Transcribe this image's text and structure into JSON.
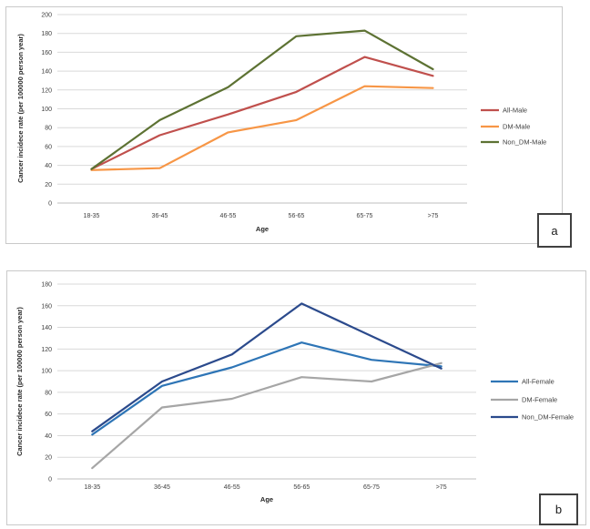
{
  "page": {
    "background": "#ffffff"
  },
  "theme": {
    "gridline_color": "#d9d9d9",
    "axis_line_color": "#bfbfbf",
    "tick_label_color": "#404040",
    "legend_text_color": "#404040",
    "figure_border_color": "#c9c9c9",
    "panel_box_border_color": "#404040"
  },
  "chart_data": [
    {
      "type": "line",
      "panel_label": "a",
      "title": "",
      "xlabel": "Age",
      "ylabel": "Cancer incidece rate (per 100000 person year)",
      "ylim": [
        0,
        200
      ],
      "ytick_step": 20,
      "grid": true,
      "legend_position": "right",
      "categories": [
        "18-35",
        "36-45",
        "46-55",
        "56-65",
        "65-75",
        ">75"
      ],
      "series": [
        {
          "name": "All-Male",
          "color": "#C0504D",
          "values": [
            36,
            72,
            94,
            118,
            155,
            135
          ]
        },
        {
          "name": "DM-Male",
          "color": "#F79646",
          "values": [
            35,
            37,
            75,
            88,
            124,
            122
          ]
        },
        {
          "name": "Non_DM-Male",
          "color": "#5D7233",
          "values": [
            36,
            88,
            123,
            177,
            183,
            142
          ]
        }
      ]
    },
    {
      "type": "line",
      "panel_label": "b",
      "title": "",
      "xlabel": "Age",
      "ylabel": "Cancer incidece rate (per 100000 person year)",
      "ylim": [
        0,
        180
      ],
      "ytick_step": 20,
      "grid": true,
      "legend_position": "right",
      "categories": [
        "18-35",
        "36-45",
        "46-55",
        "56-65",
        "65-75",
        ">75"
      ],
      "series": [
        {
          "name": "All-Female",
          "color": "#2E75B6",
          "values": [
            41,
            86,
            103,
            126,
            110,
            104
          ]
        },
        {
          "name": "DM-Female",
          "color": "#A6A6A6",
          "values": [
            10,
            66,
            74,
            94,
            90,
            107
          ]
        },
        {
          "name": "Non_DM-Female",
          "color": "#2B4A8C",
          "values": [
            44,
            90,
            115,
            162,
            132,
            102
          ]
        }
      ]
    }
  ]
}
